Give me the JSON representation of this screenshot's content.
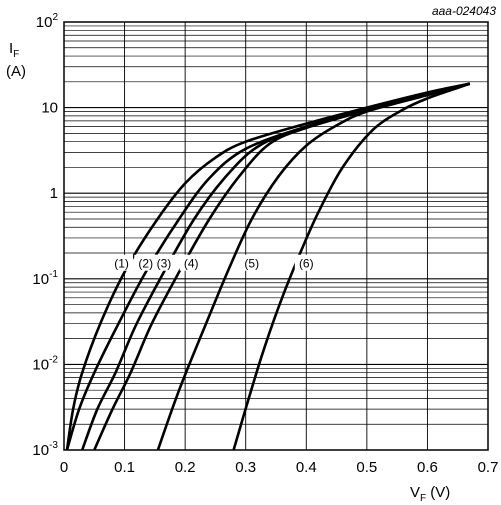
{
  "chart_data": {
    "type": "line",
    "title": "",
    "code": "aaa-024043",
    "xlabel": {
      "main": "V",
      "sub": "F",
      "unit": " (V)"
    },
    "ylabel": {
      "main": "I",
      "sub": "F",
      "unit": "(A)"
    },
    "xlim": [
      0,
      0.7
    ],
    "ylim": [
      0.001,
      100
    ],
    "yscale": "log",
    "grid": true,
    "x_ticks": [
      "0",
      "0.1",
      "0.2",
      "0.3",
      "0.4",
      "0.5",
      "0.6",
      "0.7"
    ],
    "y_ticks": [
      {
        "base": "10",
        "exp": "-3"
      },
      {
        "base": "10",
        "exp": "-2"
      },
      {
        "base": "10",
        "exp": "-1"
      },
      {
        "base": "1",
        "exp": ""
      },
      {
        "base": "10",
        "exp": ""
      },
      {
        "base": "10",
        "exp": "2"
      }
    ],
    "series": [
      {
        "name": "(1)",
        "label_pos": [
          0.095,
          0.15
        ],
        "points": [
          [
            0.005,
            0.001
          ],
          [
            0.015,
            0.003
          ],
          [
            0.03,
            0.008
          ],
          [
            0.06,
            0.03
          ],
          [
            0.1,
            0.12
          ],
          [
            0.15,
            0.45
          ],
          [
            0.2,
            1.3
          ],
          [
            0.25,
            2.6
          ],
          [
            0.3,
            4.0
          ],
          [
            0.4,
            6.5
          ],
          [
            0.5,
            10
          ],
          [
            0.6,
            15
          ],
          [
            0.67,
            19
          ]
        ]
      },
      {
        "name": "(2)",
        "label_pos": [
          0.135,
          0.15
        ],
        "points": [
          [
            0.005,
            0.001
          ],
          [
            0.025,
            0.003
          ],
          [
            0.05,
            0.008
          ],
          [
            0.09,
            0.03
          ],
          [
            0.135,
            0.12
          ],
          [
            0.19,
            0.5
          ],
          [
            0.24,
            1.5
          ],
          [
            0.3,
            3.3
          ],
          [
            0.4,
            6.0
          ],
          [
            0.5,
            9.5
          ],
          [
            0.6,
            14.5
          ],
          [
            0.67,
            19
          ]
        ]
      },
      {
        "name": "(3)",
        "label_pos": [
          0.165,
          0.15
        ],
        "points": [
          [
            0.03,
            0.001
          ],
          [
            0.055,
            0.003
          ],
          [
            0.085,
            0.008
          ],
          [
            0.12,
            0.03
          ],
          [
            0.165,
            0.12
          ],
          [
            0.215,
            0.5
          ],
          [
            0.265,
            1.5
          ],
          [
            0.32,
            3.5
          ],
          [
            0.4,
            6.0
          ],
          [
            0.5,
            9.5
          ],
          [
            0.6,
            14.5
          ],
          [
            0.67,
            19
          ]
        ]
      },
      {
        "name": "(4)",
        "label_pos": [
          0.21,
          0.15
        ],
        "points": [
          [
            0.05,
            0.001
          ],
          [
            0.08,
            0.003
          ],
          [
            0.11,
            0.008
          ],
          [
            0.145,
            0.03
          ],
          [
            0.19,
            0.12
          ],
          [
            0.24,
            0.5
          ],
          [
            0.29,
            1.6
          ],
          [
            0.34,
            3.8
          ],
          [
            0.4,
            5.8
          ],
          [
            0.5,
            9.3
          ],
          [
            0.6,
            14.3
          ],
          [
            0.67,
            19
          ]
        ]
      },
      {
        "name": "(5)",
        "label_pos": [
          0.31,
          0.15
        ],
        "points": [
          [
            0.155,
            0.001
          ],
          [
            0.19,
            0.005
          ],
          [
            0.23,
            0.025
          ],
          [
            0.27,
            0.12
          ],
          [
            0.31,
            0.5
          ],
          [
            0.355,
            1.6
          ],
          [
            0.4,
            3.6
          ],
          [
            0.45,
            6.2
          ],
          [
            0.5,
            9.0
          ],
          [
            0.6,
            14.0
          ],
          [
            0.67,
            19
          ]
        ]
      },
      {
        "name": "(6)",
        "label_pos": [
          0.4,
          0.15
        ],
        "points": [
          [
            0.28,
            0.001
          ],
          [
            0.305,
            0.004
          ],
          [
            0.33,
            0.015
          ],
          [
            0.36,
            0.06
          ],
          [
            0.39,
            0.2
          ],
          [
            0.42,
            0.6
          ],
          [
            0.46,
            2.0
          ],
          [
            0.51,
            5.5
          ],
          [
            0.56,
            9.5
          ],
          [
            0.6,
            12.8
          ],
          [
            0.65,
            17
          ],
          [
            0.67,
            19
          ]
        ]
      }
    ]
  }
}
